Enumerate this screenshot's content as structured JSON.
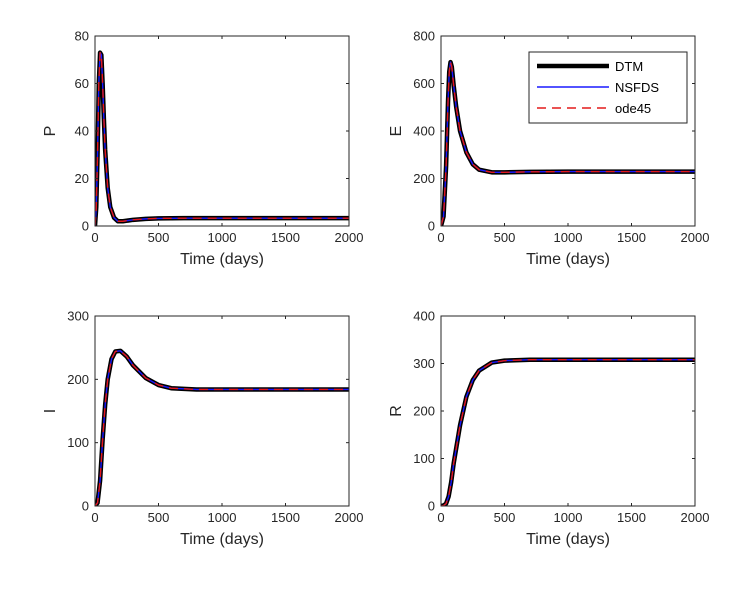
{
  "chart_data": [
    {
      "type": "line",
      "xlabel": "Time (days)",
      "ylabel": "P",
      "xlim": [
        0,
        2000
      ],
      "ylim": [
        0,
        80
      ],
      "xticks": [
        0,
        500,
        1000,
        1500,
        2000
      ],
      "yticks": [
        0,
        20,
        40,
        60,
        80
      ],
      "grid": false,
      "series": [
        {
          "name": "DTM",
          "x": [
            0,
            10,
            20,
            30,
            40,
            50,
            60,
            70,
            80,
            100,
            120,
            150,
            180,
            220,
            300,
            400,
            500,
            700,
            1000,
            1500,
            2000
          ],
          "y": [
            0,
            8,
            30,
            60,
            73,
            72,
            60,
            45,
            32,
            16,
            8,
            3.5,
            2.0,
            2.0,
            2.6,
            3.0,
            3.2,
            3.3,
            3.3,
            3.3,
            3.3
          ]
        },
        {
          "name": "NSFDS",
          "x": [
            0,
            10,
            20,
            30,
            40,
            50,
            60,
            70,
            80,
            100,
            120,
            150,
            180,
            220,
            300,
            400,
            500,
            700,
            1000,
            1500,
            2000
          ],
          "y": [
            0,
            8,
            30,
            60,
            73,
            72,
            60,
            45,
            32,
            16,
            8,
            3.5,
            2.0,
            2.0,
            2.6,
            3.0,
            3.2,
            3.3,
            3.3,
            3.3,
            3.3
          ]
        },
        {
          "name": "ode45",
          "x": [
            0,
            10,
            20,
            30,
            40,
            50,
            60,
            70,
            80,
            100,
            120,
            150,
            180,
            220,
            300,
            400,
            500,
            700,
            1000,
            1500,
            2000
          ],
          "y": [
            0,
            8,
            30,
            60,
            73,
            72,
            60,
            45,
            32,
            16,
            8,
            3.5,
            2.0,
            2.0,
            2.6,
            3.0,
            3.2,
            3.3,
            3.3,
            3.3,
            3.3
          ]
        }
      ]
    },
    {
      "type": "line",
      "xlabel": "Time (days)",
      "ylabel": "E",
      "xlim": [
        0,
        2000
      ],
      "ylim": [
        0,
        800
      ],
      "xticks": [
        0,
        500,
        1000,
        1500,
        2000
      ],
      "yticks": [
        0,
        200,
        400,
        600,
        800
      ],
      "grid": false,
      "legend": {
        "placement": "top-right",
        "entries": [
          "DTM",
          "NSFDS",
          "ode45"
        ]
      },
      "series": [
        {
          "name": "DTM",
          "x": [
            0,
            20,
            40,
            55,
            65,
            75,
            85,
            100,
            120,
            150,
            200,
            250,
            300,
            400,
            500,
            700,
            1000,
            1500,
            2000
          ],
          "y": [
            0,
            40,
            250,
            520,
            650,
            690,
            670,
            590,
            500,
            400,
            310,
            260,
            237,
            226,
            226,
            228,
            229,
            229,
            229
          ]
        },
        {
          "name": "NSFDS",
          "x": [
            0,
            20,
            40,
            55,
            65,
            75,
            85,
            100,
            120,
            150,
            200,
            250,
            300,
            400,
            500,
            700,
            1000,
            1500,
            2000
          ],
          "y": [
            0,
            40,
            250,
            520,
            650,
            690,
            670,
            590,
            500,
            400,
            310,
            260,
            237,
            226,
            226,
            228,
            229,
            229,
            229
          ]
        },
        {
          "name": "ode45",
          "x": [
            0,
            20,
            40,
            55,
            65,
            75,
            85,
            100,
            120,
            150,
            200,
            250,
            300,
            400,
            500,
            700,
            1000,
            1500,
            2000
          ],
          "y": [
            0,
            40,
            250,
            520,
            650,
            690,
            670,
            590,
            500,
            400,
            310,
            260,
            237,
            226,
            226,
            228,
            229,
            229,
            229
          ]
        }
      ]
    },
    {
      "type": "line",
      "xlabel": "Time (days)",
      "ylabel": "I",
      "xlim": [
        0,
        2000
      ],
      "ylim": [
        0,
        300
      ],
      "xticks": [
        0,
        500,
        1000,
        1500,
        2000
      ],
      "yticks": [
        0,
        100,
        200,
        300
      ],
      "grid": false,
      "series": [
        {
          "name": "DTM",
          "x": [
            0,
            20,
            40,
            60,
            80,
            100,
            130,
            160,
            200,
            250,
            300,
            400,
            500,
            600,
            800,
            1000,
            1500,
            2000
          ],
          "y": [
            0,
            5,
            40,
            105,
            160,
            200,
            232,
            244,
            245,
            236,
            222,
            202,
            191,
            186,
            184,
            184,
            184,
            184
          ]
        },
        {
          "name": "NSFDS",
          "x": [
            0,
            20,
            40,
            60,
            80,
            100,
            130,
            160,
            200,
            250,
            300,
            400,
            500,
            600,
            800,
            1000,
            1500,
            2000
          ],
          "y": [
            0,
            5,
            40,
            105,
            160,
            200,
            232,
            244,
            245,
            236,
            222,
            202,
            191,
            186,
            184,
            184,
            184,
            184
          ]
        },
        {
          "name": "ode45",
          "x": [
            0,
            20,
            40,
            60,
            80,
            100,
            130,
            160,
            200,
            250,
            300,
            400,
            500,
            600,
            800,
            1000,
            1500,
            2000
          ],
          "y": [
            0,
            5,
            40,
            105,
            160,
            200,
            232,
            244,
            245,
            236,
            222,
            202,
            191,
            186,
            184,
            184,
            184,
            184
          ]
        }
      ]
    },
    {
      "type": "line",
      "xlabel": "Time (days)",
      "ylabel": "R",
      "xlim": [
        0,
        2000
      ],
      "ylim": [
        0,
        400
      ],
      "xticks": [
        0,
        500,
        1000,
        1500,
        2000
      ],
      "yticks": [
        0,
        100,
        200,
        300,
        400
      ],
      "grid": false,
      "series": [
        {
          "name": "DTM",
          "x": [
            0,
            20,
            40,
            60,
            80,
            100,
            150,
            200,
            250,
            300,
            400,
            500,
            700,
            1000,
            1500,
            2000
          ],
          "y": [
            0,
            1,
            5,
            20,
            50,
            90,
            170,
            230,
            265,
            285,
            302,
            306,
            308,
            308,
            308,
            308
          ]
        },
        {
          "name": "NSFDS",
          "x": [
            0,
            20,
            40,
            60,
            80,
            100,
            150,
            200,
            250,
            300,
            400,
            500,
            700,
            1000,
            1500,
            2000
          ],
          "y": [
            0,
            1,
            5,
            20,
            50,
            90,
            170,
            230,
            265,
            285,
            302,
            306,
            308,
            308,
            308,
            308
          ]
        },
        {
          "name": "ode45",
          "x": [
            0,
            20,
            40,
            60,
            80,
            100,
            150,
            200,
            250,
            300,
            400,
            500,
            700,
            1000,
            1500,
            2000
          ],
          "y": [
            0,
            1,
            5,
            20,
            50,
            90,
            170,
            230,
            265,
            285,
            302,
            306,
            308,
            308,
            308,
            308
          ]
        }
      ]
    }
  ],
  "styles": {
    "DTM": {
      "color": "#000000"
    },
    "NSFDS": {
      "color": "#1a1aff"
    },
    "ode45": {
      "color": "#e41a1a"
    }
  }
}
